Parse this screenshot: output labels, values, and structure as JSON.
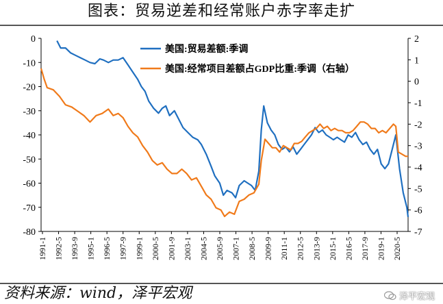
{
  "title": "图表：贸易逆差和经常账户赤字率走扩",
  "source": "资料来源：wind，泽平宏观",
  "watermark": "泽平宏观",
  "colors": {
    "blue": "#1f6fc0",
    "orange": "#f07a1a",
    "axis": "#000000"
  },
  "chart_data": {
    "type": "line",
    "x_tick_labels": [
      "1991-1",
      "1992-5",
      "1993-9",
      "1995-1",
      "1996-5",
      "1997-9",
      "1999-1",
      "2000-5",
      "2001-9",
      "2003-1",
      "2004-5",
      "2005-9",
      "2007-1",
      "2008-5",
      "2009-9",
      "2011-1",
      "2012-5",
      "2013-9",
      "2015-1",
      "2016-5",
      "2017-9",
      "2019-1",
      "2020-5"
    ],
    "x_range": [
      1991.0,
      2021.0
    ],
    "y_left": {
      "range": [
        -80,
        0
      ],
      "ticks": [
        "0",
        "-10",
        "-20",
        "-30",
        "-40",
        "-50",
        "-60",
        "-70",
        "-80"
      ]
    },
    "y_right": {
      "range": [
        -7,
        2
      ],
      "ticks": [
        "2",
        "1",
        "0",
        "-1",
        "-2",
        "-3",
        "-4",
        "-5",
        "-6",
        "-7"
      ]
    },
    "series": [
      {
        "name": "美国:贸易差额:季调",
        "axis": "left",
        "points": [
          [
            1992.3,
            -1
          ],
          [
            1992.6,
            -4
          ],
          [
            1993.0,
            -4
          ],
          [
            1993.4,
            -6
          ],
          [
            1993.8,
            -7
          ],
          [
            1994.2,
            -8
          ],
          [
            1994.6,
            -9
          ],
          [
            1995.0,
            -10
          ],
          [
            1995.4,
            -10.5
          ],
          [
            1995.8,
            -8.5
          ],
          [
            1996.1,
            -9
          ],
          [
            1996.5,
            -10
          ],
          [
            1996.9,
            -9
          ],
          [
            1997.3,
            -9
          ],
          [
            1997.7,
            -8
          ],
          [
            1998.1,
            -11
          ],
          [
            1998.5,
            -14
          ],
          [
            1998.9,
            -17
          ],
          [
            1999.2,
            -20
          ],
          [
            1999.5,
            -22
          ],
          [
            1999.8,
            -26
          ],
          [
            2000.2,
            -29
          ],
          [
            2000.6,
            -31
          ],
          [
            2000.9,
            -29
          ],
          [
            2001.2,
            -28
          ],
          [
            2001.5,
            -32
          ],
          [
            2001.9,
            -30
          ],
          [
            2002.2,
            -33
          ],
          [
            2002.6,
            -37
          ],
          [
            2003.0,
            -39
          ],
          [
            2003.4,
            -41
          ],
          [
            2003.8,
            -42
          ],
          [
            2004.1,
            -44
          ],
          [
            2004.5,
            -48
          ],
          [
            2004.9,
            -53
          ],
          [
            2005.2,
            -57
          ],
          [
            2005.6,
            -60
          ],
          [
            2005.9,
            -65
          ],
          [
            2006.2,
            -63
          ],
          [
            2006.6,
            -64
          ],
          [
            2006.9,
            -66
          ],
          [
            2007.2,
            -61
          ],
          [
            2007.6,
            -59
          ],
          [
            2007.9,
            -60
          ],
          [
            2008.2,
            -61
          ],
          [
            2008.5,
            -63
          ],
          [
            2008.8,
            -55
          ],
          [
            2009.0,
            -38
          ],
          [
            2009.2,
            -28
          ],
          [
            2009.5,
            -35
          ],
          [
            2009.8,
            -38
          ],
          [
            2010.1,
            -40
          ],
          [
            2010.4,
            -44
          ],
          [
            2010.7,
            -46
          ],
          [
            2011.0,
            -45
          ],
          [
            2011.3,
            -47
          ],
          [
            2011.6,
            -45
          ],
          [
            2011.9,
            -48
          ],
          [
            2012.2,
            -46
          ],
          [
            2012.5,
            -44
          ],
          [
            2012.8,
            -42
          ],
          [
            2013.1,
            -40
          ],
          [
            2013.4,
            -37
          ],
          [
            2013.7,
            -39
          ],
          [
            2014.0,
            -38
          ],
          [
            2014.3,
            -40
          ],
          [
            2014.6,
            -41
          ],
          [
            2014.9,
            -42
          ],
          [
            2015.2,
            -41
          ],
          [
            2015.5,
            -42
          ],
          [
            2015.8,
            -43
          ],
          [
            2016.1,
            -40
          ],
          [
            2016.4,
            -41
          ],
          [
            2016.7,
            -39
          ],
          [
            2017.0,
            -42
          ],
          [
            2017.3,
            -44
          ],
          [
            2017.6,
            -43
          ],
          [
            2017.9,
            -46
          ],
          [
            2018.2,
            -48
          ],
          [
            2018.5,
            -46
          ],
          [
            2018.8,
            -52
          ],
          [
            2019.1,
            -54
          ],
          [
            2019.4,
            -52
          ],
          [
            2019.7,
            -46
          ],
          [
            2020.0,
            -40
          ],
          [
            2020.3,
            -54
          ],
          [
            2020.6,
            -64
          ],
          [
            2020.9,
            -70
          ],
          [
            2021.0,
            -74
          ]
        ]
      },
      {
        "name": "美国:经常项目差额占GDP比重:季调（右轴）",
        "axis": "right",
        "points": [
          [
            1991.0,
            0.6
          ],
          [
            1991.25,
            0.1
          ],
          [
            1991.5,
            -0.3
          ],
          [
            1992.0,
            -0.4
          ],
          [
            1992.5,
            -0.7
          ],
          [
            1993.0,
            -1.1
          ],
          [
            1993.5,
            -1.2
          ],
          [
            1994.0,
            -1.4
          ],
          [
            1994.5,
            -1.6
          ],
          [
            1995.0,
            -1.9
          ],
          [
            1995.5,
            -1.6
          ],
          [
            1996.0,
            -1.5
          ],
          [
            1996.5,
            -1.3
          ],
          [
            1996.9,
            -1.6
          ],
          [
            1997.3,
            -1.5
          ],
          [
            1997.7,
            -1.7
          ],
          [
            1998.1,
            -2.1
          ],
          [
            1998.5,
            -2.4
          ],
          [
            1998.9,
            -2.6
          ],
          [
            1999.3,
            -3.0
          ],
          [
            1999.7,
            -3.3
          ],
          [
            2000.1,
            -3.7
          ],
          [
            2000.5,
            -3.9
          ],
          [
            2000.9,
            -3.8
          ],
          [
            2001.3,
            -4.1
          ],
          [
            2001.7,
            -4.3
          ],
          [
            2002.1,
            -4.3
          ],
          [
            2002.5,
            -4.1
          ],
          [
            2002.9,
            -4.3
          ],
          [
            2003.3,
            -4.6
          ],
          [
            2003.7,
            -4.5
          ],
          [
            2004.1,
            -4.9
          ],
          [
            2004.5,
            -5.3
          ],
          [
            2004.9,
            -5.5
          ],
          [
            2005.3,
            -5.9
          ],
          [
            2005.7,
            -6.0
          ],
          [
            2006.0,
            -6.3
          ],
          [
            2006.4,
            -6.1
          ],
          [
            2006.8,
            -6.2
          ],
          [
            2007.2,
            -5.6
          ],
          [
            2007.6,
            -5.5
          ],
          [
            2008.0,
            -5.3
          ],
          [
            2008.4,
            -5.2
          ],
          [
            2008.8,
            -4.8
          ],
          [
            2009.0,
            -3.7
          ],
          [
            2009.3,
            -2.7
          ],
          [
            2009.6,
            -2.9
          ],
          [
            2009.9,
            -3.1
          ],
          [
            2010.2,
            -3.1
          ],
          [
            2010.5,
            -3.3
          ],
          [
            2010.8,
            -3.0
          ],
          [
            2011.1,
            -3.1
          ],
          [
            2011.4,
            -3.2
          ],
          [
            2011.7,
            -2.9
          ],
          [
            2012.0,
            -2.9
          ],
          [
            2012.3,
            -2.8
          ],
          [
            2012.6,
            -2.6
          ],
          [
            2012.9,
            -2.4
          ],
          [
            2013.2,
            -2.3
          ],
          [
            2013.5,
            -2.2
          ],
          [
            2013.8,
            -2.0
          ],
          [
            2014.1,
            -2.2
          ],
          [
            2014.4,
            -2.1
          ],
          [
            2014.7,
            -2.3
          ],
          [
            2015.0,
            -2.2
          ],
          [
            2015.3,
            -2.3
          ],
          [
            2015.6,
            -2.3
          ],
          [
            2015.9,
            -2.4
          ],
          [
            2016.2,
            -2.4
          ],
          [
            2016.5,
            -2.3
          ],
          [
            2016.8,
            -2.1
          ],
          [
            2017.1,
            -1.9
          ],
          [
            2017.4,
            -1.9
          ],
          [
            2017.7,
            -2.0
          ],
          [
            2018.0,
            -2.2
          ],
          [
            2018.3,
            -2.2
          ],
          [
            2018.6,
            -2.4
          ],
          [
            2018.9,
            -2.3
          ],
          [
            2019.2,
            -2.4
          ],
          [
            2019.5,
            -2.2
          ],
          [
            2019.8,
            -2.0
          ],
          [
            2020.0,
            -2.1
          ],
          [
            2020.2,
            -3.3
          ],
          [
            2020.5,
            -3.4
          ],
          [
            2020.8,
            -3.5
          ],
          [
            2021.0,
            -3.5
          ]
        ]
      }
    ]
  }
}
